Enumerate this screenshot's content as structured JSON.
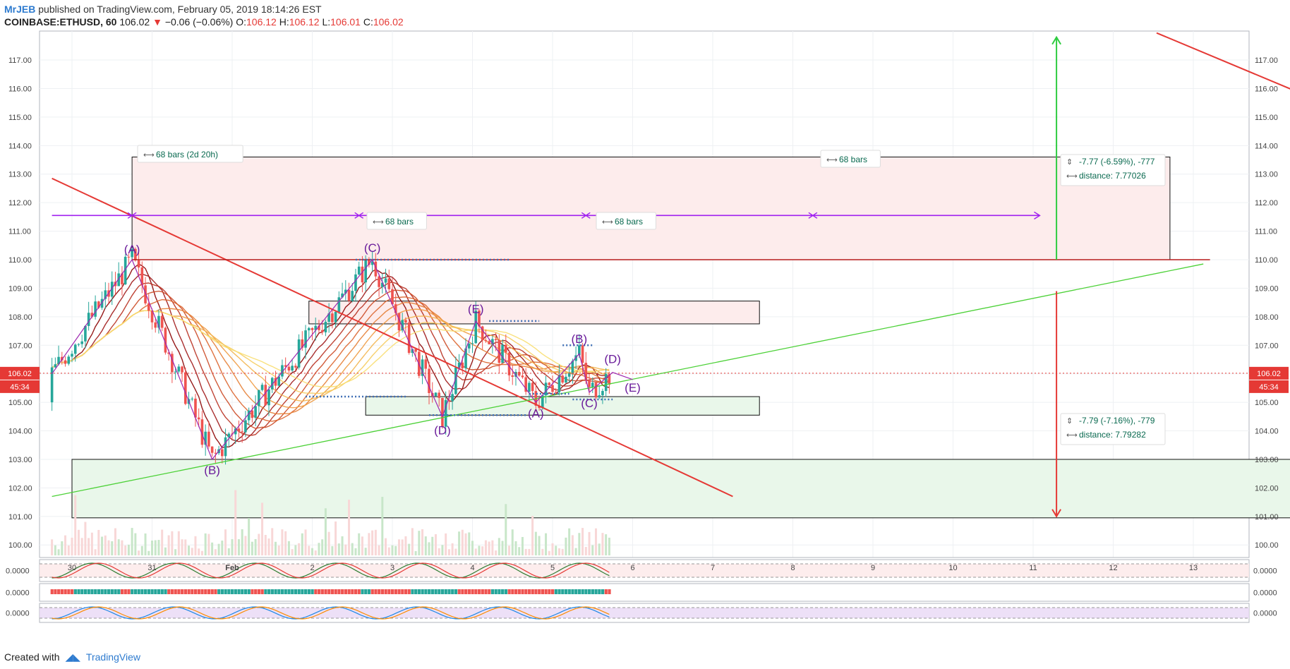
{
  "header": {
    "author": "MrJEB",
    "published_text": "published on TradingView.com, February 05, 2019 18:14:26 EST",
    "symbol": "COINBASE:ETHUSD, 60",
    "last": "106.02",
    "change": "−0.06 (−0.06%)",
    "o_label": "O:",
    "o_value": "106.12",
    "h_label": "H:",
    "h_value": "106.12",
    "l_label": "L:",
    "l_value": "106.01",
    "c_label": "C:",
    "c_value": "106.02"
  },
  "footer": {
    "created_with": "Created with",
    "brand": "TradingView"
  },
  "colors": {
    "up": "#26a69a",
    "down": "#ef5350",
    "wave": "#9c27b0",
    "trend_red": "#e53935",
    "trend_green": "#4cd137",
    "zone_red": "#fdecec",
    "zone_green": "#e9f7ea",
    "osc_fill": "#e8d8f5"
  },
  "price_badges": {
    "last": "106.02",
    "countdown": "45:34"
  },
  "measurements": {
    "up": {
      "line1": "-7.77 (-6.59%), -777",
      "line2": "distance: 7.77026"
    },
    "down": {
      "line1": "-7.79 (-7.16%), -779",
      "line2": "distance: 7.79282"
    }
  },
  "bar_labels": [
    "68 bars (2d 20h)",
    "68 bars",
    "68 bars",
    "68 bars"
  ],
  "wave_labels": [
    {
      "t": "(A)",
      "date": "2019-01-30 18:00",
      "price": 110.35
    },
    {
      "t": "(B)",
      "date": "2019-01-31 18:00",
      "price": 102.6
    },
    {
      "t": "(C)",
      "date": "2019-02-02 18:00",
      "price": 110.4
    },
    {
      "t": "(D)",
      "date": "2019-02-03 15:00",
      "price": 104.0
    },
    {
      "t": "(E)",
      "date": "2019-02-04 01:00",
      "price": 108.25
    },
    {
      "t": "(A)",
      "date": "2019-02-04 19:00",
      "price": 104.6
    },
    {
      "t": "(B)",
      "date": "2019-02-05 08:00",
      "price": 107.2
    },
    {
      "t": "(C)",
      "date": "2019-02-05 11:00",
      "price": 104.95
    },
    {
      "t": "(D)",
      "date": "2019-02-05 18:00",
      "price": 106.5
    },
    {
      "t": "(E)",
      "date": "2019-02-06 00:00",
      "price": 105.5
    }
  ],
  "oscillators": [
    {
      "value": "0.0000"
    },
    {
      "value": "0.0000"
    },
    {
      "value": "0.0000"
    }
  ],
  "chart_data": {
    "type": "candlestick",
    "symbol": "COINBASE:ETHUSD",
    "interval": "60",
    "y_ticks": [
      100,
      101,
      102,
      103,
      104,
      105,
      106,
      107,
      108,
      109,
      110,
      111,
      112,
      113,
      114,
      115,
      116,
      117
    ],
    "x_ticks": [
      "30",
      "31",
      "Feb",
      "2",
      "3",
      "4",
      "5",
      "6",
      "7",
      "8",
      "9",
      "10",
      "11",
      "12",
      "13"
    ],
    "ylim": [
      99.5,
      118.0
    ],
    "grid": true,
    "last_price": 106.02,
    "wave_path": [
      {
        "date": "2019-01-29 18:00",
        "price": 106.0
      },
      {
        "date": "2019-01-30 18:00",
        "price": 110.0
      },
      {
        "date": "2019-01-31 18:00",
        "price": 103.0
      },
      {
        "date": "2019-02-02 18:00",
        "price": 110.0
      },
      {
        "date": "2019-02-03 15:00",
        "price": 104.5
      },
      {
        "date": "2019-02-04 01:00",
        "price": 107.85
      },
      {
        "date": "2019-02-04 19:00",
        "price": 105.0
      },
      {
        "date": "2019-02-05 08:00",
        "price": 106.7
      },
      {
        "date": "2019-02-05 11:00",
        "price": 105.35
      },
      {
        "date": "2019-02-05 18:00",
        "price": 106.05
      },
      {
        "date": "2019-02-06 00:00",
        "price": 105.8
      }
    ],
    "trend_lines": [
      {
        "color": "red",
        "from": {
          "date": "2019-01-29 18:00",
          "price": 112.85
        },
        "to": {
          "date": "2019-02-07 06:00",
          "price": 101.7
        }
      },
      {
        "color": "green",
        "from": {
          "date": "2019-01-29 18:00",
          "price": 101.7
        },
        "to": {
          "date": "2019-02-13 03:00",
          "price": 109.85
        }
      },
      {
        "color": "red",
        "from": {
          "date": "2019-02-12 13:00",
          "price": 117.95
        },
        "to": {
          "date": "2019-02-14 13:00",
          "price": 115.6
        }
      }
    ],
    "zones": [
      {
        "fill": "red",
        "x1": "2019-01-30 18:00",
        "x2": "2019-02-12 17:00",
        "y1": 110.0,
        "y2": 113.6
      },
      {
        "fill": "red",
        "x1": "2019-02-01 23:00",
        "x2": "2019-02-07 14:00",
        "y1": 107.75,
        "y2": 108.55
      },
      {
        "fill": "green",
        "x1": "2019-02-02 16:00",
        "x2": "2019-02-07 14:00",
        "y1": 104.55,
        "y2": 105.2
      },
      {
        "fill": "green",
        "x1": "2019-01-30 00:00",
        "x2": "2019-02-14 15:00",
        "y1": 100.95,
        "y2": 103.0
      }
    ],
    "resistance": {
      "price": 110.0,
      "from": "2019-01-30 18:00",
      "to": "2019-02-13 05:00"
    },
    "projection_arrows": [
      {
        "color": "green",
        "date": "2019-02-11 07:00",
        "from": 110.0,
        "to": 117.8
      },
      {
        "color": "red",
        "date": "2019-02-11 07:00",
        "from": 108.9,
        "to": 101.0
      }
    ],
    "bar_spans": {
      "price": 111.55,
      "marks": [
        "2019-01-29 18:00",
        "2019-01-30 18:00",
        "2019-02-02 14:00",
        "2019-02-05 10:00",
        "2019-02-08 06:00",
        "2019-02-11 02:00"
      ]
    }
  }
}
